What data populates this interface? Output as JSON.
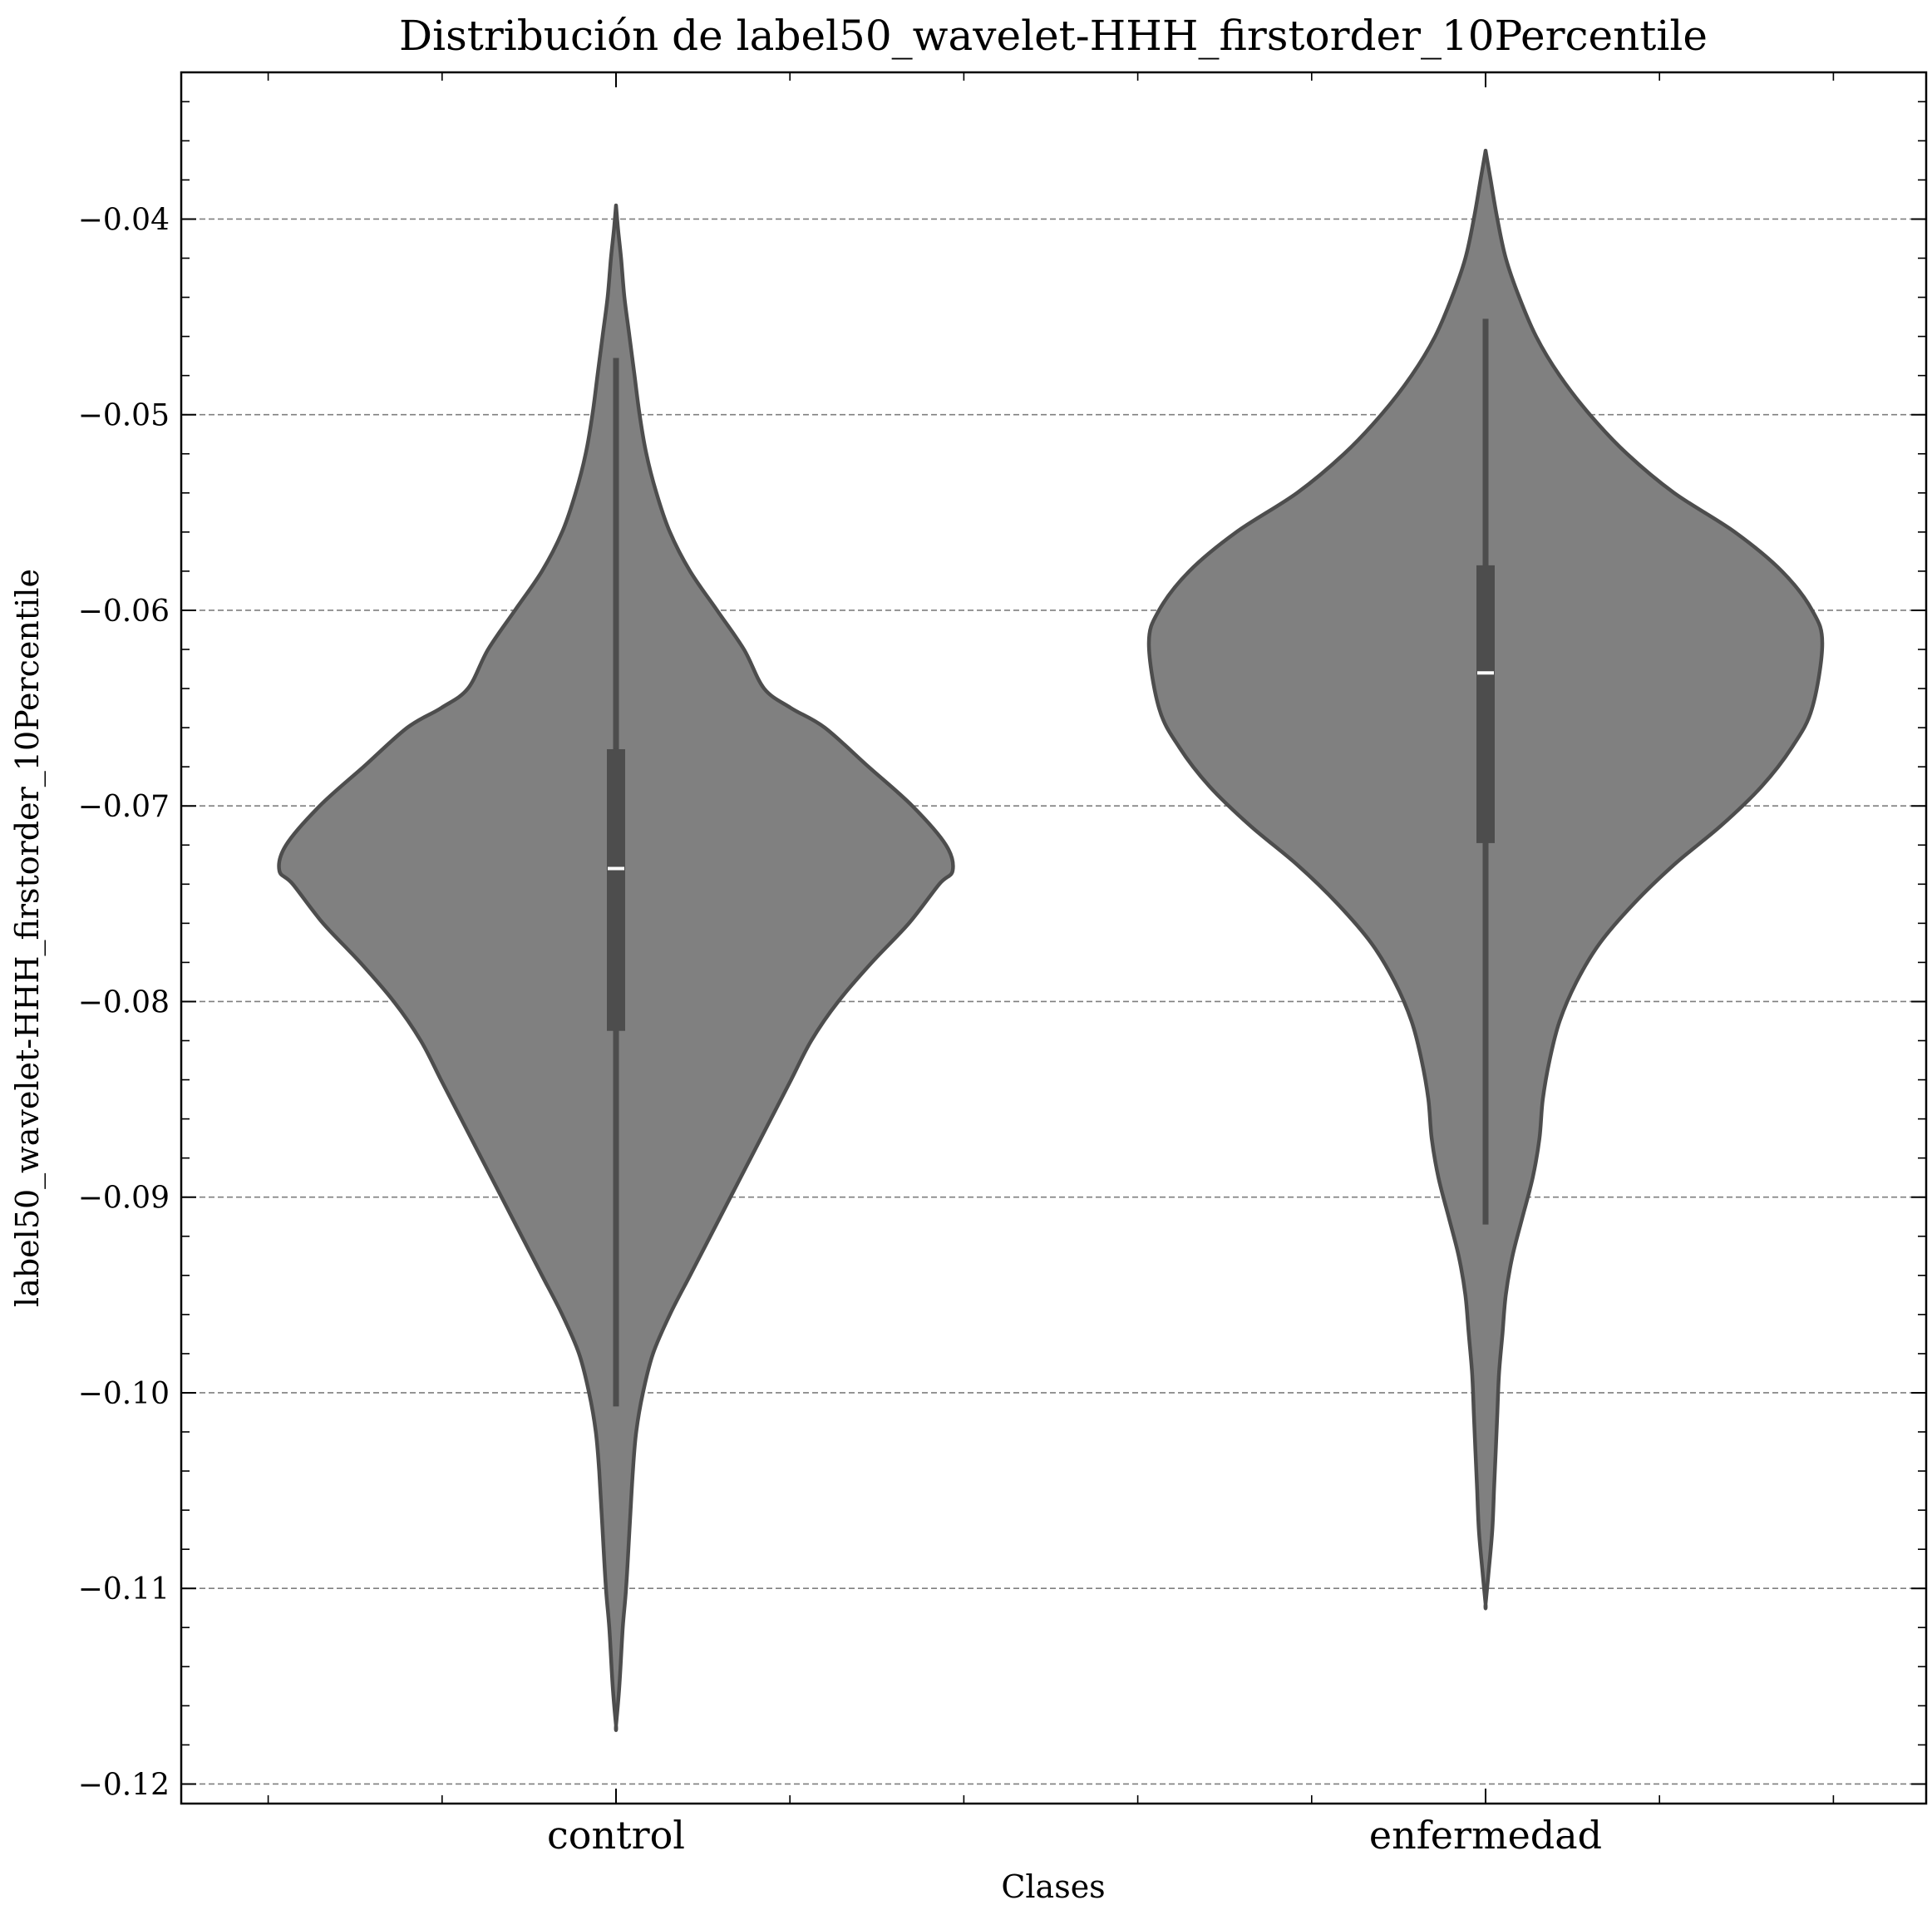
{
  "chart_data": {
    "type": "violin",
    "title": "Distribución de label50_wavelet-HHH_firstorder_10Percentile",
    "xlabel": "Clases",
    "ylabel": "label50_wavelet-HHH_firstorder_10Percentile",
    "categories": [
      "control",
      "enfermedad"
    ],
    "ylim": [
      -0.121,
      -0.0325
    ],
    "yticks": [
      -0.04,
      -0.05,
      -0.06,
      -0.07,
      -0.08,
      -0.09,
      -0.1,
      -0.11,
      -0.12
    ],
    "ytick_labels": [
      "−0.04",
      "−0.05",
      "−0.06",
      "−0.07",
      "−0.08",
      "−0.09",
      "−0.10",
      "−0.11",
      "−0.12"
    ],
    "grid": "y-dashed",
    "fill_color": "#808080",
    "edge_color": "#4d4d4d",
    "median_color": "#ffffff",
    "violins": [
      {
        "category": "control",
        "median": -0.0732,
        "q1": -0.0815,
        "q3": -0.0671,
        "whisker_low": -0.1007,
        "whisker_high": -0.0471,
        "min": -0.117,
        "max": -0.0393,
        "density": [
          [
            -0.117,
            0.0
          ],
          [
            -0.115,
            0.01
          ],
          [
            -0.112,
            0.02
          ],
          [
            -0.11,
            0.03
          ],
          [
            -0.107,
            0.04
          ],
          [
            -0.104,
            0.05
          ],
          [
            -0.102,
            0.06
          ],
          [
            -0.1,
            0.08
          ],
          [
            -0.098,
            0.11
          ],
          [
            -0.096,
            0.16
          ],
          [
            -0.094,
            0.22
          ],
          [
            -0.092,
            0.28
          ],
          [
            -0.09,
            0.34
          ],
          [
            -0.088,
            0.4
          ],
          [
            -0.086,
            0.46
          ],
          [
            -0.084,
            0.52
          ],
          [
            -0.082,
            0.58
          ],
          [
            -0.08,
            0.66
          ],
          [
            -0.078,
            0.76
          ],
          [
            -0.076,
            0.87
          ],
          [
            -0.074,
            0.96
          ],
          [
            -0.0733,
            1.0
          ],
          [
            -0.072,
            0.98
          ],
          [
            -0.07,
            0.88
          ],
          [
            -0.068,
            0.75
          ],
          [
            -0.066,
            0.62
          ],
          [
            -0.065,
            0.52
          ],
          [
            -0.064,
            0.44
          ],
          [
            -0.062,
            0.38
          ],
          [
            -0.06,
            0.3
          ],
          [
            -0.058,
            0.22
          ],
          [
            -0.056,
            0.16
          ],
          [
            -0.054,
            0.12
          ],
          [
            -0.052,
            0.09
          ],
          [
            -0.05,
            0.07
          ],
          [
            -0.048,
            0.055
          ],
          [
            -0.046,
            0.04
          ],
          [
            -0.044,
            0.025
          ],
          [
            -0.042,
            0.015
          ],
          [
            -0.0405,
            0.006
          ],
          [
            -0.0393,
            0.0
          ]
        ]
      },
      {
        "category": "enfermedad",
        "median": -0.0632,
        "q1": -0.0719,
        "q3": -0.0577,
        "whisker_low": -0.0914,
        "whisker_high": -0.0451,
        "min": -0.1108,
        "max": -0.0365,
        "density": [
          [
            -0.1108,
            0.0
          ],
          [
            -0.109,
            0.01
          ],
          [
            -0.107,
            0.02
          ],
          [
            -0.105,
            0.025
          ],
          [
            -0.103,
            0.03
          ],
          [
            -0.101,
            0.035
          ],
          [
            -0.099,
            0.04
          ],
          [
            -0.097,
            0.05
          ],
          [
            -0.095,
            0.06
          ],
          [
            -0.093,
            0.08
          ],
          [
            -0.091,
            0.11
          ],
          [
            -0.089,
            0.14
          ],
          [
            -0.087,
            0.16
          ],
          [
            -0.085,
            0.17
          ],
          [
            -0.083,
            0.19
          ],
          [
            -0.081,
            0.22
          ],
          [
            -0.079,
            0.27
          ],
          [
            -0.077,
            0.34
          ],
          [
            -0.075,
            0.44
          ],
          [
            -0.073,
            0.56
          ],
          [
            -0.071,
            0.7
          ],
          [
            -0.069,
            0.82
          ],
          [
            -0.067,
            0.91
          ],
          [
            -0.065,
            0.97
          ],
          [
            -0.0617,
            1.0
          ],
          [
            -0.06,
            0.97
          ],
          [
            -0.058,
            0.88
          ],
          [
            -0.056,
            0.74
          ],
          [
            -0.054,
            0.56
          ],
          [
            -0.052,
            0.42
          ],
          [
            -0.05,
            0.31
          ],
          [
            -0.048,
            0.22
          ],
          [
            -0.046,
            0.15
          ],
          [
            -0.044,
            0.1
          ],
          [
            -0.042,
            0.06
          ],
          [
            -0.04,
            0.035
          ],
          [
            -0.038,
            0.015
          ],
          [
            -0.037,
            0.005
          ],
          [
            -0.0365,
            0.0
          ]
        ]
      }
    ]
  }
}
